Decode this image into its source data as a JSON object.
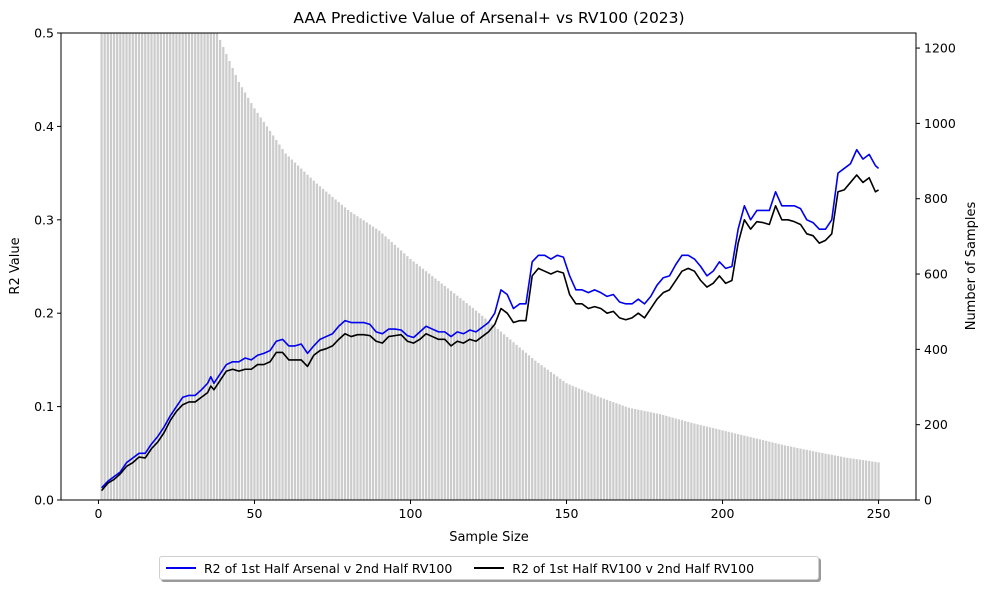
{
  "chart_data": {
    "type": "line",
    "title": "AAA Predictive Value of Arsenal+ vs RV100 (2023)",
    "xlabel": "Sample Size",
    "ylabel": "R2 Value",
    "y2label": "Number of Samples",
    "xlim": [
      -12,
      262
    ],
    "ylim": [
      0,
      0.5
    ],
    "y2lim": [
      0,
      1240
    ],
    "x_ticks": [
      0,
      50,
      100,
      150,
      200,
      250
    ],
    "y_ticks": [
      0.0,
      0.1,
      0.2,
      0.3,
      0.4,
      0.5
    ],
    "y2_ticks": [
      0,
      200,
      400,
      600,
      800,
      1000,
      1200
    ],
    "grid": false,
    "legend_position": "below",
    "colors": {
      "line1": "#0000ee",
      "line2": "#000000",
      "bars": "#cccccc"
    },
    "bars": {
      "name": "Number of Samples",
      "description_x": "sample size 1 to 250",
      "keypoints": [
        [
          1,
          1240
        ],
        [
          38,
          1240
        ],
        [
          45,
          1110
        ],
        [
          50,
          1040
        ],
        [
          60,
          920
        ],
        [
          70,
          840
        ],
        [
          80,
          770
        ],
        [
          90,
          715
        ],
        [
          100,
          640
        ],
        [
          110,
          575
        ],
        [
          120,
          510
        ],
        [
          130,
          440
        ],
        [
          140,
          370
        ],
        [
          150,
          310
        ],
        [
          160,
          275
        ],
        [
          170,
          245
        ],
        [
          180,
          228
        ],
        [
          190,
          205
        ],
        [
          200,
          185
        ],
        [
          210,
          165
        ],
        [
          220,
          145
        ],
        [
          230,
          128
        ],
        [
          240,
          112
        ],
        [
          250,
          100
        ]
      ]
    },
    "series": [
      {
        "name": "R2 of 1st Half Arsenal v 2nd Half RV100",
        "color": "#0000ee",
        "points": [
          [
            1,
            0.013
          ],
          [
            3,
            0.02
          ],
          [
            5,
            0.025
          ],
          [
            7,
            0.03
          ],
          [
            9,
            0.04
          ],
          [
            11,
            0.045
          ],
          [
            13,
            0.05
          ],
          [
            15,
            0.05
          ],
          [
            17,
            0.06
          ],
          [
            19,
            0.068
          ],
          [
            21,
            0.078
          ],
          [
            23,
            0.09
          ],
          [
            25,
            0.1
          ],
          [
            27,
            0.11
          ],
          [
            29,
            0.112
          ],
          [
            31,
            0.112
          ],
          [
            33,
            0.118
          ],
          [
            35,
            0.125
          ],
          [
            36,
            0.132
          ],
          [
            37,
            0.125
          ],
          [
            39,
            0.135
          ],
          [
            41,
            0.145
          ],
          [
            43,
            0.148
          ],
          [
            45,
            0.148
          ],
          [
            47,
            0.152
          ],
          [
            49,
            0.15
          ],
          [
            51,
            0.155
          ],
          [
            53,
            0.157
          ],
          [
            55,
            0.16
          ],
          [
            57,
            0.17
          ],
          [
            59,
            0.172
          ],
          [
            61,
            0.165
          ],
          [
            63,
            0.165
          ],
          [
            65,
            0.167
          ],
          [
            67,
            0.157
          ],
          [
            69,
            0.165
          ],
          [
            71,
            0.172
          ],
          [
            73,
            0.175
          ],
          [
            75,
            0.178
          ],
          [
            77,
            0.186
          ],
          [
            79,
            0.192
          ],
          [
            81,
            0.19
          ],
          [
            83,
            0.19
          ],
          [
            85,
            0.19
          ],
          [
            87,
            0.188
          ],
          [
            89,
            0.18
          ],
          [
            91,
            0.178
          ],
          [
            93,
            0.183
          ],
          [
            95,
            0.183
          ],
          [
            97,
            0.182
          ],
          [
            99,
            0.176
          ],
          [
            101,
            0.174
          ],
          [
            103,
            0.18
          ],
          [
            105,
            0.186
          ],
          [
            107,
            0.183
          ],
          [
            109,
            0.18
          ],
          [
            111,
            0.18
          ],
          [
            113,
            0.175
          ],
          [
            115,
            0.18
          ],
          [
            117,
            0.178
          ],
          [
            119,
            0.182
          ],
          [
            121,
            0.18
          ],
          [
            123,
            0.185
          ],
          [
            125,
            0.19
          ],
          [
            127,
            0.2
          ],
          [
            129,
            0.225
          ],
          [
            131,
            0.22
          ],
          [
            133,
            0.205
          ],
          [
            135,
            0.21
          ],
          [
            137,
            0.21
          ],
          [
            139,
            0.255
          ],
          [
            141,
            0.262
          ],
          [
            143,
            0.262
          ],
          [
            145,
            0.258
          ],
          [
            147,
            0.262
          ],
          [
            149,
            0.26
          ],
          [
            151,
            0.24
          ],
          [
            153,
            0.225
          ],
          [
            155,
            0.225
          ],
          [
            157,
            0.222
          ],
          [
            159,
            0.225
          ],
          [
            161,
            0.222
          ],
          [
            163,
            0.218
          ],
          [
            165,
            0.22
          ],
          [
            167,
            0.212
          ],
          [
            169,
            0.21
          ],
          [
            171,
            0.21
          ],
          [
            173,
            0.215
          ],
          [
            175,
            0.21
          ],
          [
            177,
            0.218
          ],
          [
            179,
            0.23
          ],
          [
            181,
            0.238
          ],
          [
            183,
            0.24
          ],
          [
            185,
            0.252
          ],
          [
            187,
            0.262
          ],
          [
            189,
            0.262
          ],
          [
            191,
            0.258
          ],
          [
            193,
            0.25
          ],
          [
            195,
            0.24
          ],
          [
            197,
            0.245
          ],
          [
            199,
            0.255
          ],
          [
            201,
            0.248
          ],
          [
            203,
            0.25
          ],
          [
            205,
            0.29
          ],
          [
            207,
            0.315
          ],
          [
            209,
            0.3
          ],
          [
            211,
            0.31
          ],
          [
            213,
            0.31
          ],
          [
            215,
            0.31
          ],
          [
            217,
            0.33
          ],
          [
            219,
            0.315
          ],
          [
            221,
            0.315
          ],
          [
            223,
            0.315
          ],
          [
            225,
            0.312
          ],
          [
            227,
            0.3
          ],
          [
            229,
            0.297
          ],
          [
            231,
            0.29
          ],
          [
            233,
            0.29
          ],
          [
            235,
            0.3
          ],
          [
            237,
            0.35
          ],
          [
            239,
            0.355
          ],
          [
            241,
            0.36
          ],
          [
            243,
            0.375
          ],
          [
            245,
            0.365
          ],
          [
            247,
            0.37
          ],
          [
            249,
            0.358
          ],
          [
            250,
            0.355
          ]
        ]
      },
      {
        "name": "R2 of 1st Half RV100 v 2nd Half RV100",
        "color": "#000000",
        "points": [
          [
            1,
            0.01
          ],
          [
            3,
            0.018
          ],
          [
            5,
            0.022
          ],
          [
            7,
            0.028
          ],
          [
            9,
            0.036
          ],
          [
            11,
            0.04
          ],
          [
            13,
            0.046
          ],
          [
            15,
            0.045
          ],
          [
            17,
            0.055
          ],
          [
            19,
            0.062
          ],
          [
            21,
            0.072
          ],
          [
            23,
            0.085
          ],
          [
            25,
            0.095
          ],
          [
            27,
            0.102
          ],
          [
            29,
            0.105
          ],
          [
            31,
            0.105
          ],
          [
            33,
            0.11
          ],
          [
            35,
            0.115
          ],
          [
            36,
            0.122
          ],
          [
            37,
            0.118
          ],
          [
            39,
            0.128
          ],
          [
            41,
            0.138
          ],
          [
            43,
            0.14
          ],
          [
            45,
            0.138
          ],
          [
            47,
            0.14
          ],
          [
            49,
            0.14
          ],
          [
            51,
            0.145
          ],
          [
            53,
            0.145
          ],
          [
            55,
            0.148
          ],
          [
            57,
            0.158
          ],
          [
            59,
            0.158
          ],
          [
            61,
            0.15
          ],
          [
            63,
            0.15
          ],
          [
            65,
            0.15
          ],
          [
            67,
            0.143
          ],
          [
            69,
            0.155
          ],
          [
            71,
            0.16
          ],
          [
            73,
            0.162
          ],
          [
            75,
            0.165
          ],
          [
            77,
            0.172
          ],
          [
            79,
            0.178
          ],
          [
            81,
            0.175
          ],
          [
            83,
            0.177
          ],
          [
            85,
            0.177
          ],
          [
            87,
            0.176
          ],
          [
            89,
            0.17
          ],
          [
            91,
            0.168
          ],
          [
            93,
            0.175
          ],
          [
            95,
            0.176
          ],
          [
            97,
            0.177
          ],
          [
            99,
            0.17
          ],
          [
            101,
            0.168
          ],
          [
            103,
            0.172
          ],
          [
            105,
            0.178
          ],
          [
            107,
            0.175
          ],
          [
            109,
            0.172
          ],
          [
            111,
            0.172
          ],
          [
            113,
            0.165
          ],
          [
            115,
            0.17
          ],
          [
            117,
            0.168
          ],
          [
            119,
            0.172
          ],
          [
            121,
            0.17
          ],
          [
            123,
            0.175
          ],
          [
            125,
            0.18
          ],
          [
            127,
            0.188
          ],
          [
            129,
            0.205
          ],
          [
            131,
            0.2
          ],
          [
            133,
            0.19
          ],
          [
            135,
            0.192
          ],
          [
            137,
            0.192
          ],
          [
            139,
            0.24
          ],
          [
            141,
            0.248
          ],
          [
            143,
            0.245
          ],
          [
            145,
            0.242
          ],
          [
            147,
            0.245
          ],
          [
            149,
            0.243
          ],
          [
            151,
            0.22
          ],
          [
            153,
            0.21
          ],
          [
            155,
            0.21
          ],
          [
            157,
            0.205
          ],
          [
            159,
            0.207
          ],
          [
            161,
            0.205
          ],
          [
            163,
            0.2
          ],
          [
            165,
            0.202
          ],
          [
            167,
            0.195
          ],
          [
            169,
            0.193
          ],
          [
            171,
            0.195
          ],
          [
            173,
            0.2
          ],
          [
            175,
            0.195
          ],
          [
            177,
            0.205
          ],
          [
            179,
            0.215
          ],
          [
            181,
            0.222
          ],
          [
            183,
            0.225
          ],
          [
            185,
            0.235
          ],
          [
            187,
            0.245
          ],
          [
            189,
            0.248
          ],
          [
            191,
            0.245
          ],
          [
            193,
            0.235
          ],
          [
            195,
            0.228
          ],
          [
            197,
            0.232
          ],
          [
            199,
            0.24
          ],
          [
            201,
            0.232
          ],
          [
            203,
            0.235
          ],
          [
            205,
            0.275
          ],
          [
            207,
            0.3
          ],
          [
            209,
            0.29
          ],
          [
            211,
            0.298
          ],
          [
            213,
            0.297
          ],
          [
            215,
            0.295
          ],
          [
            217,
            0.315
          ],
          [
            219,
            0.3
          ],
          [
            221,
            0.3
          ],
          [
            223,
            0.298
          ],
          [
            225,
            0.295
          ],
          [
            227,
            0.285
          ],
          [
            229,
            0.283
          ],
          [
            231,
            0.275
          ],
          [
            233,
            0.278
          ],
          [
            235,
            0.285
          ],
          [
            237,
            0.33
          ],
          [
            239,
            0.332
          ],
          [
            241,
            0.34
          ],
          [
            243,
            0.348
          ],
          [
            245,
            0.34
          ],
          [
            247,
            0.345
          ],
          [
            249,
            0.33
          ],
          [
            250,
            0.332
          ]
        ]
      }
    ]
  }
}
